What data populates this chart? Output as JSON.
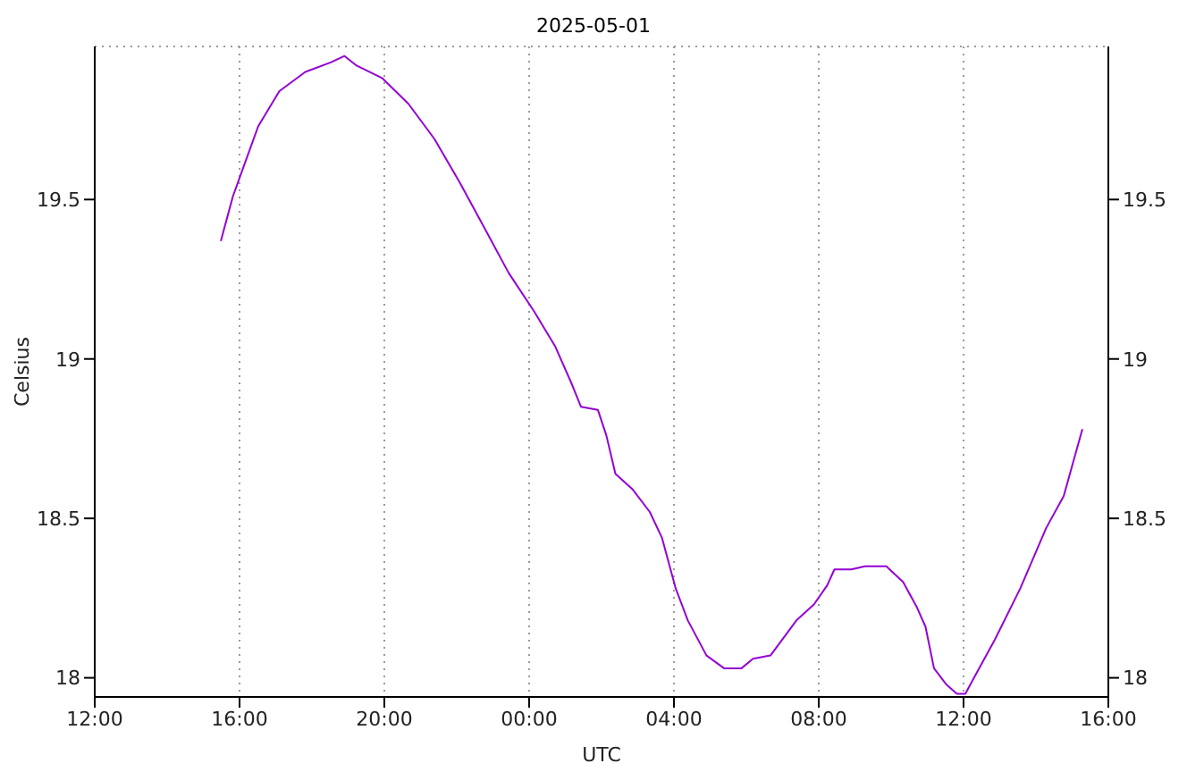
{
  "chart_data": {
    "type": "line",
    "title": "2025-05-01",
    "xlabel": "UTC",
    "ylabel": "Celsius",
    "x": [
      "2025-04-30T15:29",
      "2025-04-30T15:49",
      "2025-04-30T16:08",
      "2025-04-30T16:31",
      "2025-04-30T17:06",
      "2025-04-30T17:49",
      "2025-04-30T18:31",
      "2025-04-30T18:54",
      "2025-04-30T19:14",
      "2025-04-30T19:57",
      "2025-04-30T20:40",
      "2025-04-30T21:23",
      "2025-04-30T22:06",
      "2025-04-30T22:49",
      "2025-04-30T23:26",
      "2025-05-01T00:08",
      "2025-05-01T00:43",
      "2025-05-01T01:11",
      "2025-05-01T01:26",
      "2025-05-01T01:54",
      "2025-05-01T02:08",
      "2025-05-01T02:23",
      "2025-05-01T02:52",
      "2025-05-01T03:20",
      "2025-05-01T03:40",
      "2025-05-01T04:03",
      "2025-05-01T04:23",
      "2025-05-01T04:54",
      "2025-05-01T05:23",
      "2025-05-01T05:52",
      "2025-05-01T06:11",
      "2025-05-01T06:40",
      "2025-05-01T07:23",
      "2025-05-01T07:52",
      "2025-05-01T08:14",
      "2025-05-01T08:26",
      "2025-05-01T08:54",
      "2025-05-01T09:17",
      "2025-05-01T09:52",
      "2025-05-01T10:20",
      "2025-05-01T10:43",
      "2025-05-01T10:57",
      "2025-05-01T11:11",
      "2025-05-01T11:31",
      "2025-05-01T11:49",
      "2025-05-01T12:03",
      "2025-05-01T12:23",
      "2025-05-01T12:52",
      "2025-05-01T13:34",
      "2025-05-01T14:17",
      "2025-05-01T14:46",
      "2025-05-01T15:17"
    ],
    "series": [
      {
        "color": "#9400d3",
        "values": [
          19.37,
          19.51,
          19.61,
          19.73,
          19.84,
          19.9,
          19.93,
          19.95,
          19.92,
          19.88,
          19.8,
          19.69,
          19.55,
          19.4,
          19.27,
          19.15,
          19.04,
          18.92,
          18.85,
          18.84,
          18.76,
          18.64,
          18.59,
          18.52,
          18.44,
          18.28,
          18.18,
          18.07,
          18.03,
          18.03,
          18.06,
          18.07,
          18.18,
          18.23,
          18.29,
          18.34,
          18.34,
          18.35,
          18.35,
          18.3,
          18.22,
          18.16,
          18.03,
          17.98,
          17.95,
          17.95,
          18.02,
          18.12,
          18.28,
          18.47,
          18.57,
          18.78
        ]
      }
    ],
    "xlim": [
      "2025-04-30T12:00",
      "2025-05-01T16:00"
    ],
    "xticks": [
      {
        "value": "2025-04-30T12:00",
        "label": "12:00"
      },
      {
        "value": "2025-04-30T16:00",
        "label": "16:00"
      },
      {
        "value": "2025-04-30T20:00",
        "label": "20:00"
      },
      {
        "value": "2025-05-01T00:00",
        "label": "00:00"
      },
      {
        "value": "2025-05-01T04:00",
        "label": "04:00"
      },
      {
        "value": "2025-05-01T08:00",
        "label": "08:00"
      },
      {
        "value": "2025-05-01T12:00",
        "label": "12:00"
      },
      {
        "value": "2025-05-01T16:00",
        "label": "16:00"
      }
    ],
    "ylim": [
      17.94,
      19.98
    ],
    "yticks": [
      18,
      18.5,
      19,
      19.5
    ],
    "y2lim": [
      17.94,
      19.98
    ],
    "y2ticks": [
      18,
      18.5,
      19,
      19.5
    ],
    "grid": true,
    "marker": "none",
    "line_style": "solid"
  }
}
